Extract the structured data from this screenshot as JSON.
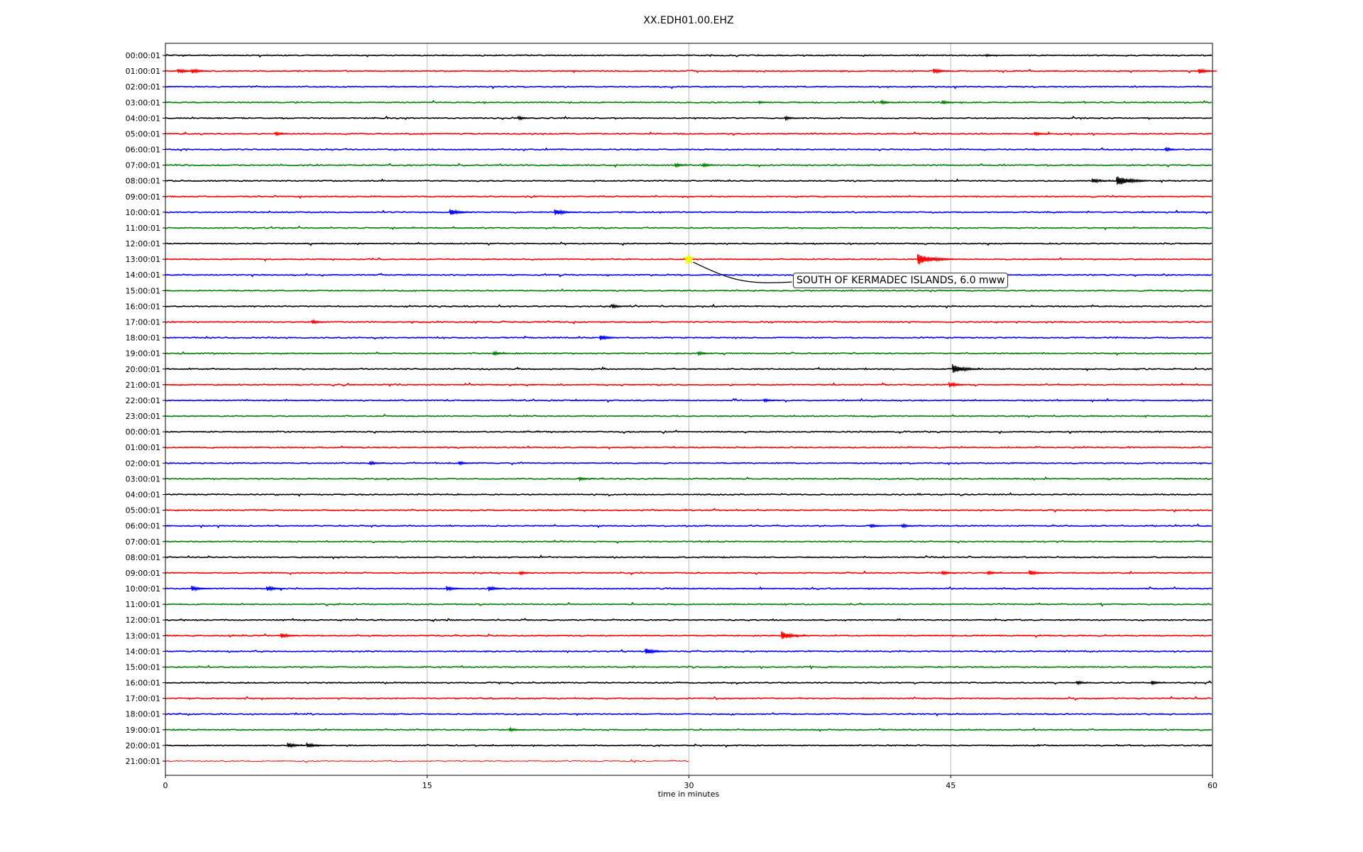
{
  "chart_data": {
    "type": "line",
    "title": "XX.EDH01.00.EHZ",
    "xlabel": "time in minutes",
    "ylabel": "",
    "xlim": [
      0,
      60
    ],
    "x_ticks": [
      0,
      15,
      30,
      45,
      60
    ],
    "grid": "vertical",
    "color_cycle": [
      "#000000",
      "#ff0000",
      "#0000ff",
      "#008000"
    ],
    "rows": [
      "00:00:01",
      "01:00:01",
      "02:00:01",
      "03:00:01",
      "04:00:01",
      "05:00:01",
      "06:00:01",
      "07:00:01",
      "08:00:01",
      "09:00:01",
      "10:00:01",
      "11:00:01",
      "12:00:01",
      "13:00:01",
      "14:00:01",
      "15:00:01",
      "16:00:01",
      "17:00:01",
      "18:00:01",
      "19:00:01",
      "20:00:01",
      "21:00:01",
      "22:00:01",
      "23:00:01",
      "00:00:01",
      "01:00:01",
      "02:00:01",
      "03:00:01",
      "04:00:01",
      "05:00:01",
      "06:00:01",
      "07:00:01",
      "08:00:01",
      "09:00:01",
      "10:00:01",
      "11:00:01",
      "12:00:01",
      "13:00:01",
      "14:00:01",
      "15:00:01",
      "16:00:01",
      "17:00:01",
      "18:00:01",
      "19:00:01",
      "20:00:01",
      "21:00:01"
    ],
    "last_row_end_minute": 30,
    "bursts": [
      {
        "row": 0,
        "minute": 47,
        "amp": 2
      },
      {
        "row": 1,
        "minute": 0.7,
        "amp": 4
      },
      {
        "row": 1,
        "minute": 1.5,
        "amp": 4
      },
      {
        "row": 1,
        "minute": 44,
        "amp": 4
      },
      {
        "row": 1,
        "minute": 59.2,
        "amp": 4
      },
      {
        "row": 3,
        "minute": 34,
        "amp": 2
      },
      {
        "row": 3,
        "minute": 41,
        "amp": 3
      },
      {
        "row": 3,
        "minute": 44.5,
        "amp": 3
      },
      {
        "row": 4,
        "minute": 20.2,
        "amp": 3
      },
      {
        "row": 4,
        "minute": 35.5,
        "amp": 3
      },
      {
        "row": 5,
        "minute": 6.3,
        "amp": 3
      },
      {
        "row": 5,
        "minute": 49.8,
        "amp": 3
      },
      {
        "row": 6,
        "minute": 57.3,
        "amp": 3
      },
      {
        "row": 7,
        "minute": 29.2,
        "amp": 3
      },
      {
        "row": 7,
        "minute": 30.8,
        "amp": 3
      },
      {
        "row": 8,
        "minute": 53.1,
        "amp": 4
      },
      {
        "row": 8,
        "minute": 54.5,
        "amp": 8
      },
      {
        "row": 10,
        "minute": 16.3,
        "amp": 5
      },
      {
        "row": 10,
        "minute": 22.3,
        "amp": 5
      },
      {
        "row": 13,
        "minute": 43.1,
        "amp": 9
      },
      {
        "row": 16,
        "minute": 25.6,
        "amp": 3
      },
      {
        "row": 17,
        "minute": 8.4,
        "amp": 3
      },
      {
        "row": 18,
        "minute": 24.9,
        "amp": 4
      },
      {
        "row": 19,
        "minute": 18.8,
        "amp": 3
      },
      {
        "row": 19,
        "minute": 30.5,
        "amp": 3
      },
      {
        "row": 20,
        "minute": 45.1,
        "amp": 7
      },
      {
        "row": 21,
        "minute": 44.9,
        "amp": 4
      },
      {
        "row": 22,
        "minute": 34.3,
        "amp": 3
      },
      {
        "row": 26,
        "minute": 11.7,
        "amp": 3
      },
      {
        "row": 26,
        "minute": 16.8,
        "amp": 3
      },
      {
        "row": 27,
        "minute": 23.7,
        "amp": 3
      },
      {
        "row": 30,
        "minute": 40.4,
        "amp": 3
      },
      {
        "row": 30,
        "minute": 42.2,
        "amp": 3
      },
      {
        "row": 33,
        "minute": 20.3,
        "amp": 3
      },
      {
        "row": 33,
        "minute": 44.5,
        "amp": 3
      },
      {
        "row": 33,
        "minute": 47.1,
        "amp": 3
      },
      {
        "row": 33,
        "minute": 49.5,
        "amp": 4
      },
      {
        "row": 34,
        "minute": 1.5,
        "amp": 4
      },
      {
        "row": 34,
        "minute": 5.8,
        "amp": 4
      },
      {
        "row": 34,
        "minute": 16.1,
        "amp": 4
      },
      {
        "row": 34,
        "minute": 18.5,
        "amp": 4
      },
      {
        "row": 37,
        "minute": 6.6,
        "amp": 4
      },
      {
        "row": 37,
        "minute": 35.3,
        "amp": 6
      },
      {
        "row": 38,
        "minute": 27.5,
        "amp": 5
      },
      {
        "row": 40,
        "minute": 52.2,
        "amp": 3
      },
      {
        "row": 40,
        "minute": 56.5,
        "amp": 3
      },
      {
        "row": 43,
        "minute": 19.7,
        "amp": 3
      },
      {
        "row": 44,
        "minute": 7.0,
        "amp": 4
      },
      {
        "row": 44,
        "minute": 8.1,
        "amp": 4
      }
    ],
    "event": {
      "label": "SOUTH OF KERMADEC ISLANDS, 6.0 mww",
      "row": 13,
      "minute": 30,
      "marker_color": "#ffff00"
    }
  }
}
